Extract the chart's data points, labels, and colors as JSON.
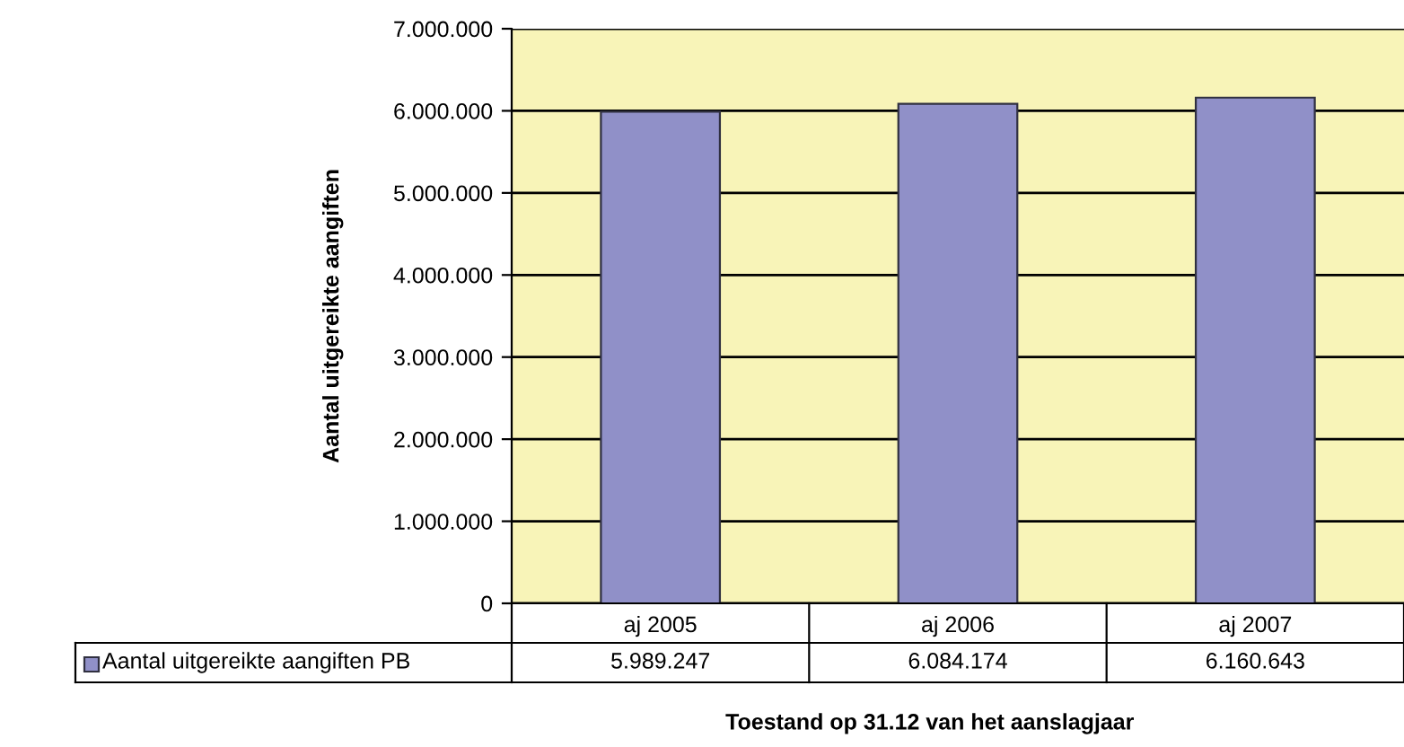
{
  "chart_data": {
    "type": "bar",
    "xlabel": "Toestand op 31.12 van het aanslagjaar",
    "ylabel": "Aantal uitgereikte aangiften",
    "categories": [
      "aj 2005",
      "aj 2006",
      "aj 2007"
    ],
    "series": [
      {
        "name": "Aantal uitgereikte aangiften PB",
        "color": "#9090c8",
        "values": [
          5989247,
          6084174,
          6160643
        ],
        "value_labels": [
          "5.989.247",
          "6.084.174",
          "6.160.643"
        ]
      }
    ],
    "ylim": [
      0,
      7000000
    ],
    "yticks": [
      {
        "value": 0,
        "label": "0"
      },
      {
        "value": 1000000,
        "label": "1.000.000"
      },
      {
        "value": 2000000,
        "label": "2.000.000"
      },
      {
        "value": 3000000,
        "label": "3.000.000"
      },
      {
        "value": 4000000,
        "label": "4.000.000"
      },
      {
        "value": 5000000,
        "label": "5.000.000"
      },
      {
        "value": 6000000,
        "label": "6.000.000"
      },
      {
        "value": 7000000,
        "label": "7.000.000"
      }
    ],
    "grid": "y",
    "legend": "bottom"
  }
}
